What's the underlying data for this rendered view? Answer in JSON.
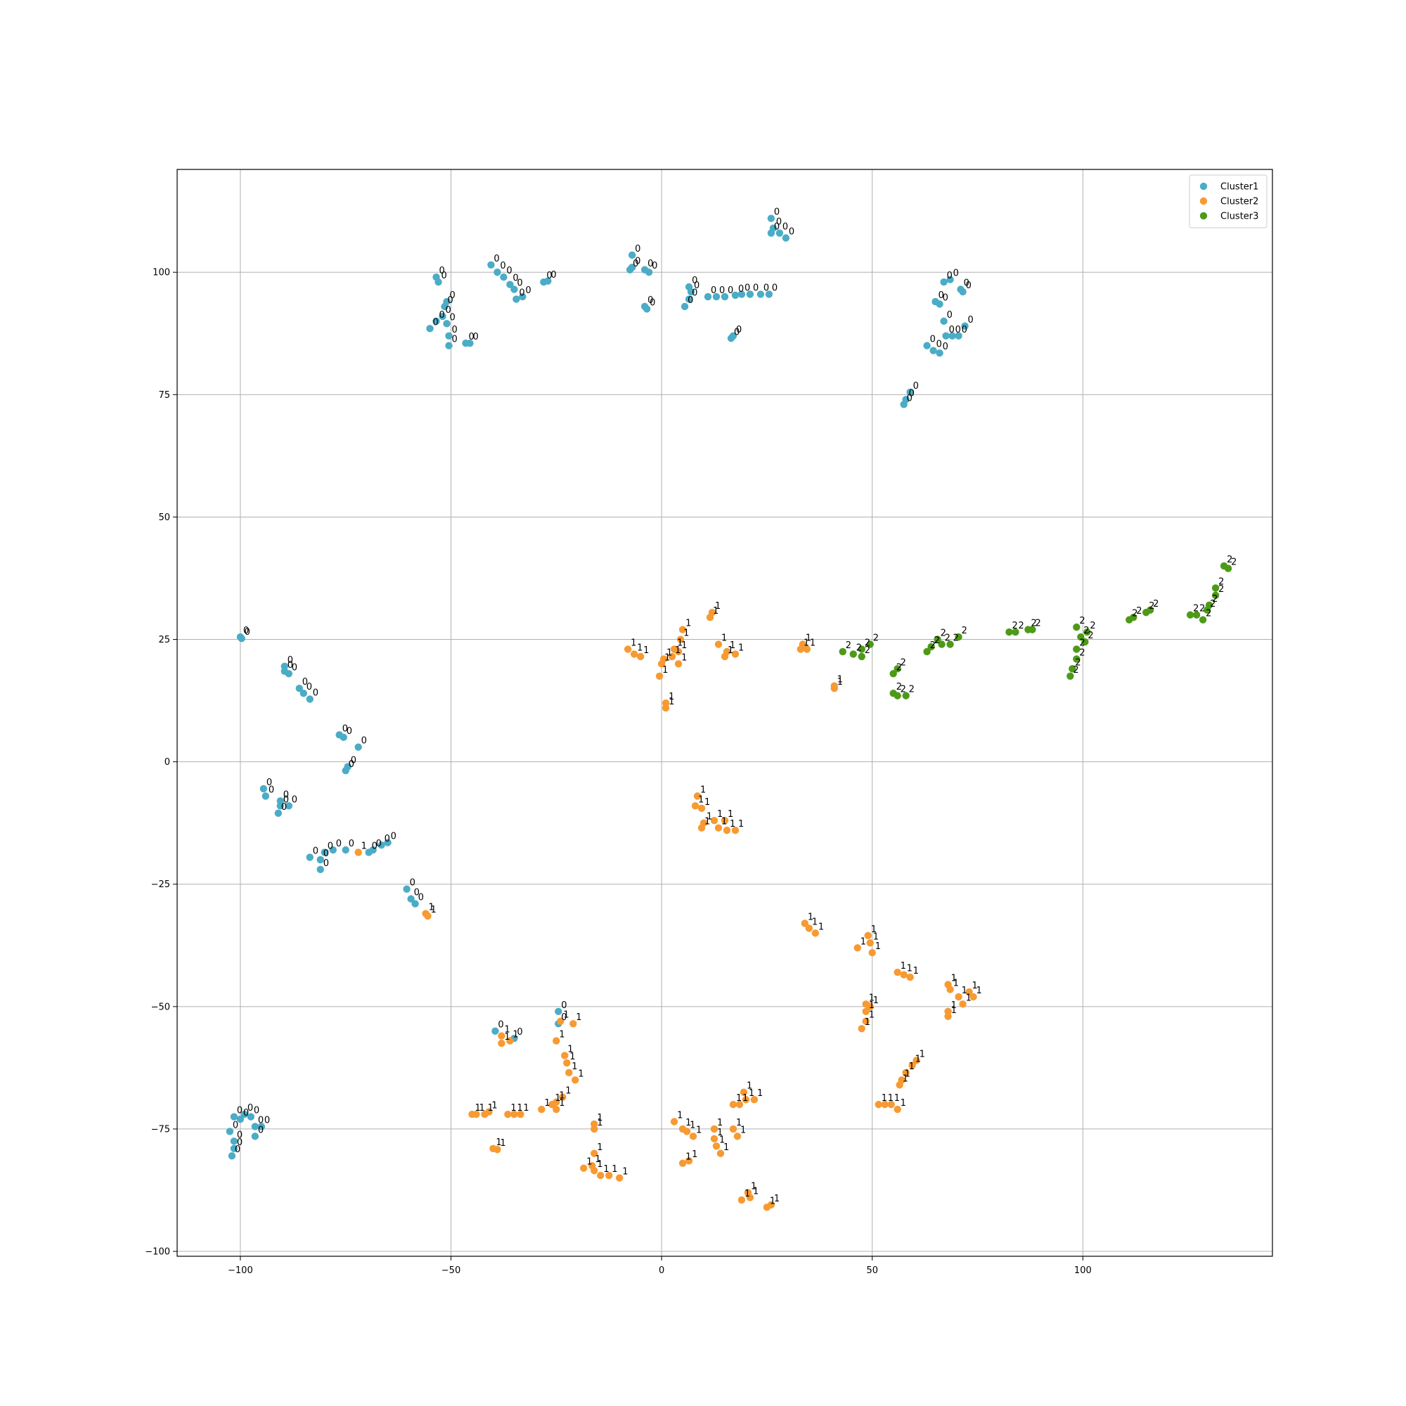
{
  "chart_data": {
    "type": "scatter",
    "title": "",
    "xlabel": "",
    "ylabel": "",
    "xlim": [
      -115,
      145
    ],
    "ylim": [
      -101,
      121
    ],
    "xticks": [
      -100,
      -50,
      0,
      50,
      100
    ],
    "yticks": [
      -100,
      -75,
      -50,
      -25,
      0,
      25,
      50,
      75,
      100
    ],
    "xtick_labels": [
      "−100",
      "−50",
      "0",
      "50",
      "100"
    ],
    "ytick_labels": [
      "−100",
      "−75",
      "−50",
      "−25",
      "0",
      "25",
      "50",
      "75",
      "100"
    ],
    "grid": true,
    "legend_position": "upper right",
    "series": [
      {
        "name": "Cluster1",
        "color": "#4bacc6",
        "label": "0",
        "points": [
          [
            -53.5,
            99
          ],
          [
            -53,
            98
          ],
          [
            -51,
            94
          ],
          [
            -51.5,
            93
          ],
          [
            -52,
            91
          ],
          [
            -53.5,
            90
          ],
          [
            -55,
            88.5
          ],
          [
            -51,
            89.5
          ],
          [
            -50.5,
            87
          ],
          [
            -50.5,
            85
          ],
          [
            -46.5,
            85.5
          ],
          [
            -45.5,
            85.5
          ],
          [
            -40.5,
            101.5
          ],
          [
            -39,
            100
          ],
          [
            -37.5,
            99
          ],
          [
            -36,
            97.5
          ],
          [
            -35,
            96.5
          ],
          [
            -34.5,
            94.5
          ],
          [
            -33,
            95
          ],
          [
            -28,
            98
          ],
          [
            -27,
            98.2
          ],
          [
            -7,
            103.5
          ],
          [
            -7,
            101
          ],
          [
            -7.5,
            100.5
          ],
          [
            -4,
            100.5
          ],
          [
            -3,
            100
          ],
          [
            -4,
            93
          ],
          [
            -3.5,
            92.5
          ],
          [
            6.5,
            97
          ],
          [
            7,
            96
          ],
          [
            6.5,
            94.5
          ],
          [
            5.5,
            93
          ],
          [
            11,
            95
          ],
          [
            13,
            95
          ],
          [
            15,
            95
          ],
          [
            17.5,
            95.3
          ],
          [
            19,
            95.5
          ],
          [
            21,
            95.5
          ],
          [
            23.5,
            95.5
          ],
          [
            25.5,
            95.5
          ],
          [
            17,
            87
          ],
          [
            16.5,
            86.5
          ],
          [
            26,
            111
          ],
          [
            26.5,
            109
          ],
          [
            26,
            108
          ],
          [
            28,
            108
          ],
          [
            29.5,
            107
          ],
          [
            67,
            98
          ],
          [
            68.5,
            98.5
          ],
          [
            71,
            96.5
          ],
          [
            71.5,
            96
          ],
          [
            65,
            94
          ],
          [
            66,
            93.5
          ],
          [
            67,
            90
          ],
          [
            67.5,
            87
          ],
          [
            69,
            87
          ],
          [
            70.5,
            87
          ],
          [
            72,
            89
          ],
          [
            63,
            85
          ],
          [
            64.5,
            84
          ],
          [
            66,
            83.5
          ],
          [
            57.5,
            73
          ],
          [
            58,
            74
          ],
          [
            59,
            75.5
          ],
          [
            -100,
            25.5
          ],
          [
            -99.7,
            25.2
          ],
          [
            -89.5,
            19.5
          ],
          [
            -89.5,
            18.5
          ],
          [
            -88.5,
            18
          ],
          [
            -86,
            15
          ],
          [
            -85,
            14
          ],
          [
            -83.5,
            12.8
          ],
          [
            -76.5,
            5.5
          ],
          [
            -75.5,
            5
          ],
          [
            -72,
            3
          ],
          [
            -74.5,
            -1
          ],
          [
            -75,
            -1.8
          ],
          [
            -94.5,
            -5.5
          ],
          [
            -94,
            -7
          ],
          [
            -90.5,
            -8
          ],
          [
            -90.5,
            -9
          ],
          [
            -88.5,
            -9
          ],
          [
            -91,
            -10.5
          ],
          [
            -83.5,
            -19.5
          ],
          [
            -80,
            -18.5
          ],
          [
            -81,
            -20
          ],
          [
            -81,
            -22
          ],
          [
            -78,
            -18
          ],
          [
            -75,
            -18
          ],
          [
            -69.5,
            -18.5
          ],
          [
            -68.5,
            -18
          ],
          [
            -66.5,
            -17
          ],
          [
            -65,
            -16.5
          ],
          [
            -60.5,
            -26
          ],
          [
            -59.5,
            -28
          ],
          [
            -58.5,
            -29
          ],
          [
            -39.5,
            -55
          ],
          [
            -35,
            -56.5
          ],
          [
            -24.5,
            -51
          ],
          [
            -24.5,
            -53.5
          ],
          [
            -101.5,
            -72.5
          ],
          [
            -100,
            -73
          ],
          [
            -99,
            -72
          ],
          [
            -97.5,
            -72.5
          ],
          [
            -96.5,
            -74.5
          ],
          [
            -95,
            -74.5
          ],
          [
            -96.5,
            -76.5
          ],
          [
            -101.5,
            -77.5
          ],
          [
            -101.5,
            -79
          ],
          [
            -102,
            -80.5
          ],
          [
            -102.5,
            -75.5
          ]
        ]
      },
      {
        "name": "Cluster2",
        "color": "#f79a32",
        "label": "1",
        "points": [
          [
            -8,
            23
          ],
          [
            -6.5,
            22
          ],
          [
            -5,
            21.5
          ],
          [
            0,
            20
          ],
          [
            0.5,
            21
          ],
          [
            2.5,
            21.5
          ],
          [
            3,
            23
          ],
          [
            4,
            22.5
          ],
          [
            4,
            20
          ],
          [
            4.5,
            25
          ],
          [
            5,
            27
          ],
          [
            -0.5,
            17.5
          ],
          [
            1,
            12
          ],
          [
            1,
            11
          ],
          [
            11.5,
            29.5
          ],
          [
            12,
            30.5
          ],
          [
            13.5,
            24
          ],
          [
            15,
            21.5
          ],
          [
            15.5,
            22.5
          ],
          [
            17.5,
            22
          ],
          [
            33,
            23
          ],
          [
            34.5,
            23
          ],
          [
            33.5,
            24
          ],
          [
            41,
            15.5
          ],
          [
            41,
            15
          ],
          [
            8.5,
            -7
          ],
          [
            8,
            -9
          ],
          [
            9.5,
            -9.5
          ],
          [
            10,
            -12.5
          ],
          [
            9.5,
            -13.5
          ],
          [
            12.5,
            -12
          ],
          [
            13.5,
            -13.5
          ],
          [
            15,
            -12
          ],
          [
            15.5,
            -14
          ],
          [
            17.5,
            -14
          ],
          [
            -56,
            -31
          ],
          [
            -55.5,
            -31.5
          ],
          [
            -72,
            -18.5
          ],
          [
            34,
            -33
          ],
          [
            35,
            -34
          ],
          [
            36.5,
            -35
          ],
          [
            46.5,
            -38
          ],
          [
            49,
            -35.5
          ],
          [
            49.5,
            -37
          ],
          [
            50,
            -39
          ],
          [
            56,
            -43
          ],
          [
            57.5,
            -43.5
          ],
          [
            59,
            -44
          ],
          [
            68,
            -45.5
          ],
          [
            68.5,
            -46.5
          ],
          [
            70.5,
            -48
          ],
          [
            71.5,
            -49.5
          ],
          [
            73,
            -47
          ],
          [
            74,
            -48
          ],
          [
            68,
            -51
          ],
          [
            68,
            -52
          ],
          [
            49.5,
            -50
          ],
          [
            48.5,
            -49.5
          ],
          [
            48.5,
            -51
          ],
          [
            48.5,
            -53
          ],
          [
            47.5,
            -54.5
          ],
          [
            -24,
            -53
          ],
          [
            -25,
            -57
          ],
          [
            -38,
            -56
          ],
          [
            -38,
            -57.5
          ],
          [
            -36,
            -57
          ],
          [
            -23,
            -60
          ],
          [
            -22.5,
            -61.5
          ],
          [
            -22,
            -63.5
          ],
          [
            -20.5,
            -65
          ],
          [
            -23.5,
            -68.5
          ],
          [
            -25,
            -69.5
          ],
          [
            -26,
            -70
          ],
          [
            -25,
            -71
          ],
          [
            -28.5,
            -71
          ],
          [
            -45,
            -72
          ],
          [
            -44,
            -72
          ],
          [
            -42,
            -72
          ],
          [
            -41,
            -71.5
          ],
          [
            -36.5,
            -72
          ],
          [
            -35,
            -72
          ],
          [
            -33.5,
            -72
          ],
          [
            -40,
            -79
          ],
          [
            -39,
            -79.2
          ],
          [
            -16,
            -74
          ],
          [
            -16,
            -75
          ],
          [
            -16,
            -80
          ],
          [
            -16.5,
            -82.5
          ],
          [
            -18.5,
            -83
          ],
          [
            -16,
            -83.5
          ],
          [
            -14.5,
            -84.5
          ],
          [
            -12.5,
            -84.5
          ],
          [
            -10,
            -85
          ],
          [
            3,
            -73.5
          ],
          [
            5,
            -75
          ],
          [
            6,
            -75.5
          ],
          [
            7.5,
            -76.5
          ],
          [
            12.5,
            -75
          ],
          [
            12.5,
            -77
          ],
          [
            13,
            -78.5
          ],
          [
            14,
            -80
          ],
          [
            17,
            -75
          ],
          [
            18,
            -76.5
          ],
          [
            5,
            -82
          ],
          [
            6.5,
            -81.5
          ],
          [
            17,
            -70
          ],
          [
            18.5,
            -70
          ],
          [
            19.5,
            -67.5
          ],
          [
            20,
            -69
          ],
          [
            22,
            -69
          ],
          [
            19,
            -89.5
          ],
          [
            20.5,
            -88
          ],
          [
            21,
            -89
          ],
          [
            25,
            -91
          ],
          [
            26,
            -90.5
          ],
          [
            51.5,
            -70
          ],
          [
            53,
            -70
          ],
          [
            54.5,
            -70
          ],
          [
            56,
            -71
          ],
          [
            56.5,
            -66
          ],
          [
            57,
            -65
          ],
          [
            58,
            -63.5
          ],
          [
            59.5,
            -62
          ],
          [
            60.5,
            -61
          ],
          [
            -21,
            -53.5
          ]
        ]
      },
      {
        "name": "Cluster3",
        "color": "#4d9a18",
        "label": "2",
        "points": [
          [
            43,
            22.5
          ],
          [
            45.5,
            22
          ],
          [
            47.5,
            21.5
          ],
          [
            47.5,
            23
          ],
          [
            49.5,
            24
          ],
          [
            55,
            18
          ],
          [
            56,
            19
          ],
          [
            55,
            14
          ],
          [
            56,
            13.5
          ],
          [
            58,
            13.5
          ],
          [
            63,
            22.5
          ],
          [
            64,
            23.5
          ],
          [
            65.5,
            25
          ],
          [
            66.5,
            24
          ],
          [
            68.5,
            24
          ],
          [
            70.5,
            25.5
          ],
          [
            82.5,
            26.5
          ],
          [
            84,
            26.5
          ],
          [
            87,
            27
          ],
          [
            88,
            27
          ],
          [
            97,
            17.5
          ],
          [
            97.5,
            19
          ],
          [
            98.5,
            21
          ],
          [
            98.5,
            23
          ],
          [
            98.5,
            27.5
          ],
          [
            99.5,
            25.5
          ],
          [
            100.5,
            24.5
          ],
          [
            101,
            26.5
          ],
          [
            111,
            29
          ],
          [
            112,
            29.5
          ],
          [
            115,
            30.5
          ],
          [
            116,
            31
          ],
          [
            125.5,
            30
          ],
          [
            127,
            30
          ],
          [
            128.5,
            29
          ],
          [
            129.5,
            31
          ],
          [
            130,
            32
          ],
          [
            131.5,
            34
          ],
          [
            131.5,
            35.5
          ],
          [
            133.5,
            40
          ],
          [
            134.5,
            39.5
          ]
        ]
      }
    ]
  }
}
